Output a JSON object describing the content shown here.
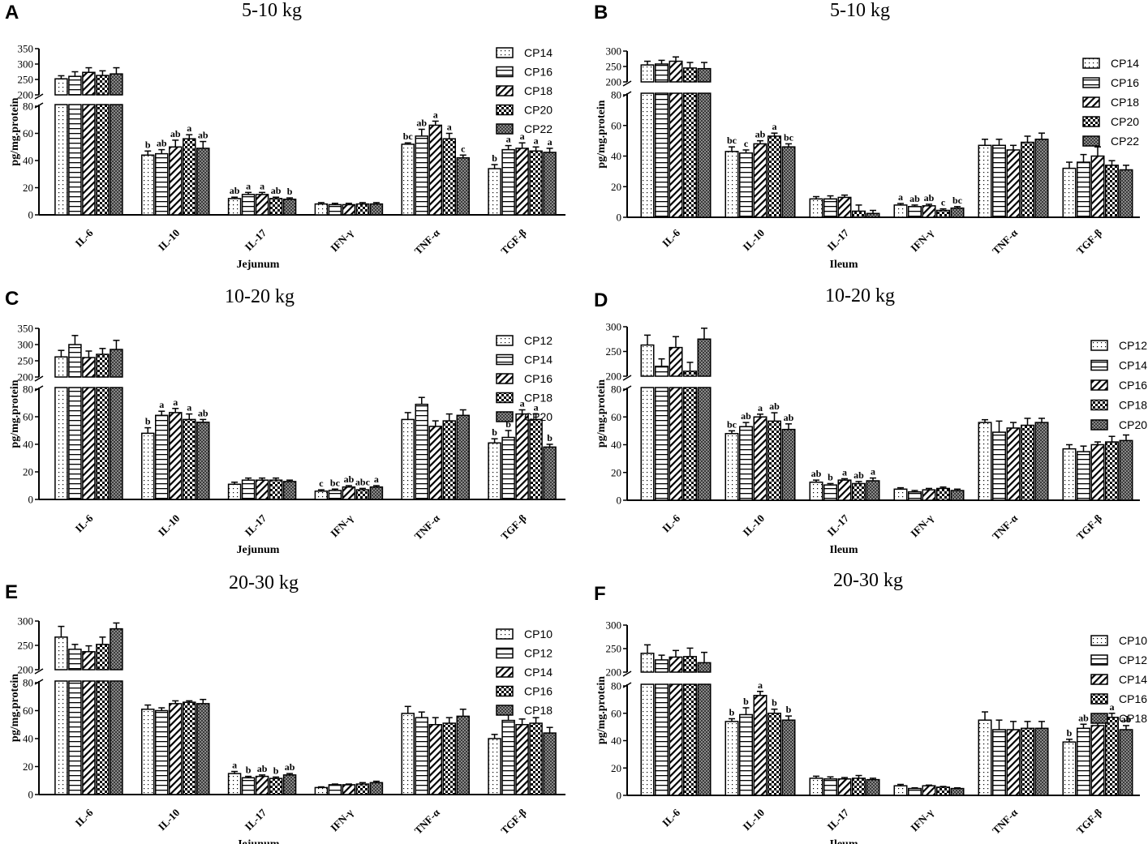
{
  "chart_data": [
    {
      "panel": "A",
      "title": "5-10 kg",
      "type": "bar",
      "xlabel": "Jejunum",
      "ylabel": "pg/mg.protein",
      "yticks_low": [
        "0",
        "20",
        "40",
        "60",
        "80"
      ],
      "yticks_high": [
        "200",
        "250",
        "300",
        "350"
      ],
      "ylim_low": [
        0,
        80
      ],
      "ylim_high": [
        200,
        350
      ],
      "categories": [
        "IL-6",
        "IL-10",
        "IL-17",
        "IFN-γ",
        "TNF-α",
        "TGF-β"
      ],
      "series": [
        {
          "name": "CP14",
          "values": [
            252,
            44,
            12,
            8,
            52,
            34
          ],
          "errors": [
            10,
            3,
            1,
            1,
            1,
            3
          ],
          "letters": [
            "",
            "b",
            "ab",
            "",
            "bc",
            "b"
          ]
        },
        {
          "name": "CP16",
          "values": [
            260,
            45,
            15,
            7.5,
            58,
            48
          ],
          "errors": [
            15,
            3,
            1.5,
            1,
            5,
            3
          ],
          "letters": [
            "",
            "ab",
            "a",
            "",
            "ab",
            "a"
          ]
        },
        {
          "name": "CP18",
          "values": [
            273,
            50,
            15,
            7.5,
            66,
            49
          ],
          "errors": [
            15,
            5,
            1.5,
            1,
            3,
            4
          ],
          "letters": [
            "",
            "ab",
            "a",
            "",
            "a",
            "a"
          ]
        },
        {
          "name": "CP20",
          "values": [
            263,
            56,
            12,
            8,
            56,
            47
          ],
          "errors": [
            15,
            3,
            1,
            1,
            4,
            3
          ],
          "letters": [
            "",
            "a",
            "ab",
            "",
            "a",
            "a"
          ]
        },
        {
          "name": "CP22",
          "values": [
            268,
            49,
            11.5,
            8,
            42,
            46
          ],
          "errors": [
            20,
            5,
            1,
            1,
            2,
            3
          ],
          "letters": [
            "",
            "ab",
            "b",
            "",
            "c",
            "a"
          ]
        }
      ]
    },
    {
      "panel": "B",
      "title": "5-10 kg",
      "type": "bar",
      "xlabel": "Ileum",
      "ylabel": "pg/mg.protein",
      "yticks_low": [
        "0",
        "20",
        "40",
        "60",
        "80"
      ],
      "yticks_high": [
        "200",
        "250",
        "300"
      ],
      "ylim_low": [
        0,
        80
      ],
      "ylim_high": [
        200,
        300
      ],
      "categories": [
        "IL-6",
        "IL-10",
        "IL-17",
        "IFN-γ",
        "TNF-α",
        "TGF-β"
      ],
      "series": [
        {
          "name": "CP14",
          "values": [
            255,
            43,
            12,
            8,
            47,
            32
          ],
          "errors": [
            12,
            3,
            1.5,
            1,
            4,
            4
          ],
          "letters": [
            "",
            "bc",
            "",
            "a",
            "",
            ""
          ]
        },
        {
          "name": "CP16",
          "values": [
            258,
            42,
            12,
            7,
            47,
            36
          ],
          "errors": [
            12,
            2,
            2,
            1,
            4,
            5
          ],
          "letters": [
            "",
            "c",
            "",
            "ab",
            "",
            ""
          ]
        },
        {
          "name": "CP18",
          "values": [
            267,
            48,
            13,
            7.5,
            44,
            40
          ],
          "errors": [
            14,
            2,
            1.5,
            1,
            3,
            6
          ],
          "letters": [
            "",
            "ab",
            "",
            "ab",
            "",
            ""
          ]
        },
        {
          "name": "CP20",
          "values": [
            245,
            53,
            4,
            4.5,
            49,
            34
          ],
          "errors": [
            18,
            2,
            4,
            1,
            4,
            3
          ],
          "letters": [
            "",
            "a",
            "",
            "c",
            "",
            ""
          ]
        },
        {
          "name": "CP22",
          "values": [
            243,
            46,
            2.5,
            6,
            51,
            31
          ],
          "errors": [
            20,
            2,
            2,
            1,
            4,
            3
          ],
          "letters": [
            "",
            "bc",
            "",
            "bc",
            "",
            ""
          ]
        }
      ]
    },
    {
      "panel": "C",
      "title": "10-20 kg",
      "type": "bar",
      "xlabel": "Jejunum",
      "ylabel": "pg/mg.protein",
      "yticks_low": [
        "0",
        "20",
        "40",
        "60",
        "80"
      ],
      "yticks_high": [
        "200",
        "250",
        "300",
        "350"
      ],
      "ylim_low": [
        0,
        80
      ],
      "ylim_high": [
        200,
        350
      ],
      "categories": [
        "IL-6",
        "IL-10",
        "IL-17",
        "IFN-γ",
        "TNF-α",
        "TGF-β"
      ],
      "series": [
        {
          "name": "CP12",
          "values": [
            262,
            48,
            11,
            6,
            58,
            41
          ],
          "errors": [
            20,
            4,
            1.5,
            1,
            5,
            3
          ],
          "letters": [
            "",
            "b",
            "",
            "c",
            "",
            "b"
          ]
        },
        {
          "name": "CP14",
          "values": [
            300,
            61,
            14,
            6.5,
            69,
            45
          ],
          "errors": [
            28,
            3,
            1.5,
            1,
            5,
            5
          ],
          "letters": [
            "",
            "a",
            "",
            "bc",
            "",
            "b"
          ]
        },
        {
          "name": "CP16",
          "values": [
            260,
            63,
            14,
            9,
            53,
            62
          ],
          "errors": [
            20,
            3,
            1.5,
            1,
            4,
            3
          ],
          "letters": [
            "",
            "a",
            "",
            "ab",
            "",
            "a"
          ]
        },
        {
          "name": "CP18",
          "values": [
            270,
            58,
            14,
            7,
            57,
            58
          ],
          "errors": [
            18,
            4,
            1.5,
            1,
            5,
            4
          ],
          "letters": [
            "",
            "a",
            "",
            "abc",
            "",
            "a"
          ]
        },
        {
          "name": "CP20",
          "values": [
            285,
            56,
            13,
            9,
            61,
            38
          ],
          "errors": [
            28,
            2,
            1,
            1,
            4,
            2
          ],
          "letters": [
            "",
            "ab",
            "",
            "a",
            "",
            "b"
          ]
        }
      ]
    },
    {
      "panel": "D",
      "title": "10-20 kg",
      "type": "bar",
      "xlabel": "Ileum",
      "ylabel": "pg/mg.protein",
      "yticks_low": [
        "0",
        "20",
        "40",
        "60",
        "80"
      ],
      "yticks_high": [
        "200",
        "250",
        "300"
      ],
      "ylim_low": [
        0,
        80
      ],
      "ylim_high": [
        200,
        300
      ],
      "categories": [
        "IL-6",
        "IL-10",
        "IL-17",
        "IFN-γ",
        "TNF-α",
        "TGF-β"
      ],
      "series": [
        {
          "name": "CP12",
          "values": [
            263,
            48,
            13,
            8,
            56,
            37
          ],
          "errors": [
            20,
            2,
            1.5,
            1,
            2,
            3
          ],
          "letters": [
            "",
            "bc",
            "ab",
            "",
            "",
            ""
          ]
        },
        {
          "name": "CP14",
          "values": [
            220,
            53,
            11,
            6,
            49,
            35
          ],
          "errors": [
            15,
            3,
            1,
            1,
            8,
            4
          ],
          "letters": [
            "",
            "ab",
            "b",
            "",
            "",
            ""
          ]
        },
        {
          "name": "CP16",
          "values": [
            258,
            60,
            14.5,
            7.5,
            52,
            40
          ],
          "errors": [
            22,
            2,
            1,
            1,
            4,
            2
          ],
          "letters": [
            "",
            "a",
            "a",
            "",
            "",
            ""
          ]
        },
        {
          "name": "CP18",
          "values": [
            210,
            57,
            12,
            8.5,
            54,
            42
          ],
          "errors": [
            18,
            6,
            1.5,
            1,
            5,
            4
          ],
          "letters": [
            "",
            "ab",
            "ab",
            "",
            "",
            ""
          ]
        },
        {
          "name": "CP20",
          "values": [
            275,
            51,
            14,
            7,
            56,
            43
          ],
          "errors": [
            22,
            4,
            2,
            1,
            3,
            4
          ],
          "letters": [
            "",
            "ab",
            "a",
            "",
            "",
            ""
          ]
        }
      ]
    },
    {
      "panel": "E",
      "title": "20-30 kg",
      "type": "bar",
      "xlabel": "Jejunum",
      "ylabel": "pg/mg.protein",
      "yticks_low": [
        "0",
        "20",
        "40",
        "60",
        "80"
      ],
      "yticks_high": [
        "200",
        "250",
        "300"
      ],
      "ylim_low": [
        0,
        80
      ],
      "ylim_high": [
        200,
        300
      ],
      "categories": [
        "IL-6",
        "IL-10",
        "IL-17",
        "IFN-γ",
        "TNF-α",
        "TGF-β"
      ],
      "series": [
        {
          "name": "CP10",
          "values": [
            267,
            61,
            15,
            5,
            58,
            40
          ],
          "errors": [
            22,
            3,
            1.5,
            0.5,
            5,
            3
          ],
          "letters": [
            "",
            "",
            "a",
            "",
            "",
            ""
          ]
        },
        {
          "name": "CP12",
          "values": [
            242,
            60,
            12,
            7,
            55,
            53
          ],
          "errors": [
            10,
            2,
            1,
            0.5,
            4,
            5
          ],
          "letters": [
            "",
            "",
            "b",
            "",
            "",
            ""
          ]
        },
        {
          "name": "CP14",
          "values": [
            237,
            65,
            13,
            7,
            50,
            50
          ],
          "errors": [
            12,
            2,
            1,
            0.5,
            5,
            4
          ],
          "letters": [
            "",
            "",
            "ab",
            "",
            "",
            ""
          ]
        },
        {
          "name": "CP16",
          "values": [
            252,
            66,
            11.5,
            7.5,
            51,
            51
          ],
          "errors": [
            15,
            1,
            1,
            1,
            4,
            4
          ],
          "letters": [
            "",
            "",
            "b",
            "",
            "",
            ""
          ]
        },
        {
          "name": "CP18",
          "values": [
            284,
            65,
            14,
            8.5,
            56,
            44
          ],
          "errors": [
            12,
            3,
            1,
            1,
            5,
            4
          ],
          "letters": [
            "",
            "",
            "ab",
            "",
            "",
            ""
          ]
        }
      ]
    },
    {
      "panel": "F",
      "title": "20-30 kg",
      "type": "bar",
      "xlabel": "Ileum",
      "ylabel": "pg/mg.protein",
      "yticks_low": [
        "0",
        "20",
        "40",
        "60",
        "80"
      ],
      "yticks_high": [
        "200",
        "250",
        "300"
      ],
      "ylim_low": [
        0,
        80
      ],
      "ylim_high": [
        200,
        300
      ],
      "categories": [
        "IL-6",
        "IL-10",
        "IL-17",
        "IFN-γ",
        "TNF-α",
        "TGF-β"
      ],
      "series": [
        {
          "name": "CP10",
          "values": [
            240,
            54,
            12.5,
            7,
            55,
            39
          ],
          "errors": [
            18,
            2,
            1.5,
            1,
            6,
            2
          ],
          "letters": [
            "",
            "b",
            "",
            "",
            "",
            "b"
          ]
        },
        {
          "name": "CP12",
          "values": [
            226,
            59,
            12,
            5,
            48,
            49
          ],
          "errors": [
            10,
            5,
            1.5,
            0.5,
            7,
            3
          ],
          "letters": [
            "",
            "b",
            "",
            "",
            "",
            "ab"
          ]
        },
        {
          "name": "CP14",
          "values": [
            232,
            73,
            12,
            7,
            48,
            51
          ],
          "errors": [
            14,
            3,
            1,
            0.5,
            6,
            3
          ],
          "letters": [
            "",
            "a",
            "",
            "",
            "",
            "a"
          ]
        },
        {
          "name": "CP16",
          "values": [
            233,
            60,
            12.5,
            6,
            49,
            57
          ],
          "errors": [
            18,
            3,
            2,
            0.5,
            5,
            3
          ],
          "letters": [
            "",
            "b",
            "",
            "",
            "",
            "a"
          ]
        },
        {
          "name": "CP18",
          "values": [
            220,
            55,
            11.5,
            5,
            49,
            48
          ],
          "errors": [
            22,
            3,
            1,
            0.5,
            5,
            3
          ],
          "letters": [
            "",
            "b",
            "",
            "",
            "",
            "ab"
          ]
        }
      ]
    }
  ]
}
